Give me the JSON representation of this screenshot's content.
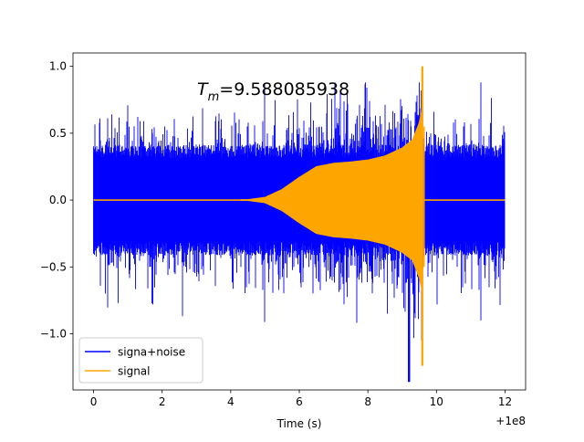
{
  "chart_data": {
    "type": "line",
    "title": "",
    "xlabel": "Time (s)",
    "ylabel": "",
    "x_offset_label": "+1e8",
    "xlim": [
      -0.6,
      12.6
    ],
    "ylim": [
      -1.42,
      1.1
    ],
    "x_ticks": [
      0,
      2,
      4,
      6,
      8,
      10,
      12
    ],
    "x_tick_labels": [
      "0",
      "2",
      "4",
      "6",
      "8",
      "10",
      "12"
    ],
    "y_ticks": [
      1.0,
      0.5,
      0.0,
      -0.5,
      -1.0
    ],
    "y_tick_labels": [
      "1.0",
      "0.5",
      "0.0",
      "−0.5",
      "−1.0"
    ],
    "grid": false,
    "legend_position": "lower-left",
    "annotation": {
      "prefix": "T",
      "subscript": "m",
      "value_text": "=9.588085938",
      "x": 3.0,
      "y": 0.81
    },
    "series": [
      {
        "name": "signa+noise",
        "color": "#0000ff",
        "x_range": [
          0,
          12
        ],
        "noise_band": {
          "typical_amplitude": 0.42,
          "max_peaks": [
            0.88,
            -1.36
          ],
          "min_at_x": 9.2
        }
      },
      {
        "name": "signal",
        "color": "#ffa500",
        "x_range": [
          0,
          12
        ],
        "envelope_points": [
          [
            0,
            0.0
          ],
          [
            4.5,
            0.003
          ],
          [
            5.0,
            0.02
          ],
          [
            5.5,
            0.08
          ],
          [
            6.0,
            0.17
          ],
          [
            6.5,
            0.25
          ],
          [
            7.0,
            0.275
          ],
          [
            7.5,
            0.285
          ],
          [
            8.0,
            0.3
          ],
          [
            8.5,
            0.33
          ],
          [
            9.0,
            0.39
          ],
          [
            9.3,
            0.45
          ],
          [
            9.5,
            0.58
          ],
          [
            9.58,
            0.68
          ]
        ],
        "merger_time": 9.588085938,
        "merger_peak": [
          1.0,
          -1.24
        ],
        "ringdown_end": 9.65
      }
    ]
  }
}
